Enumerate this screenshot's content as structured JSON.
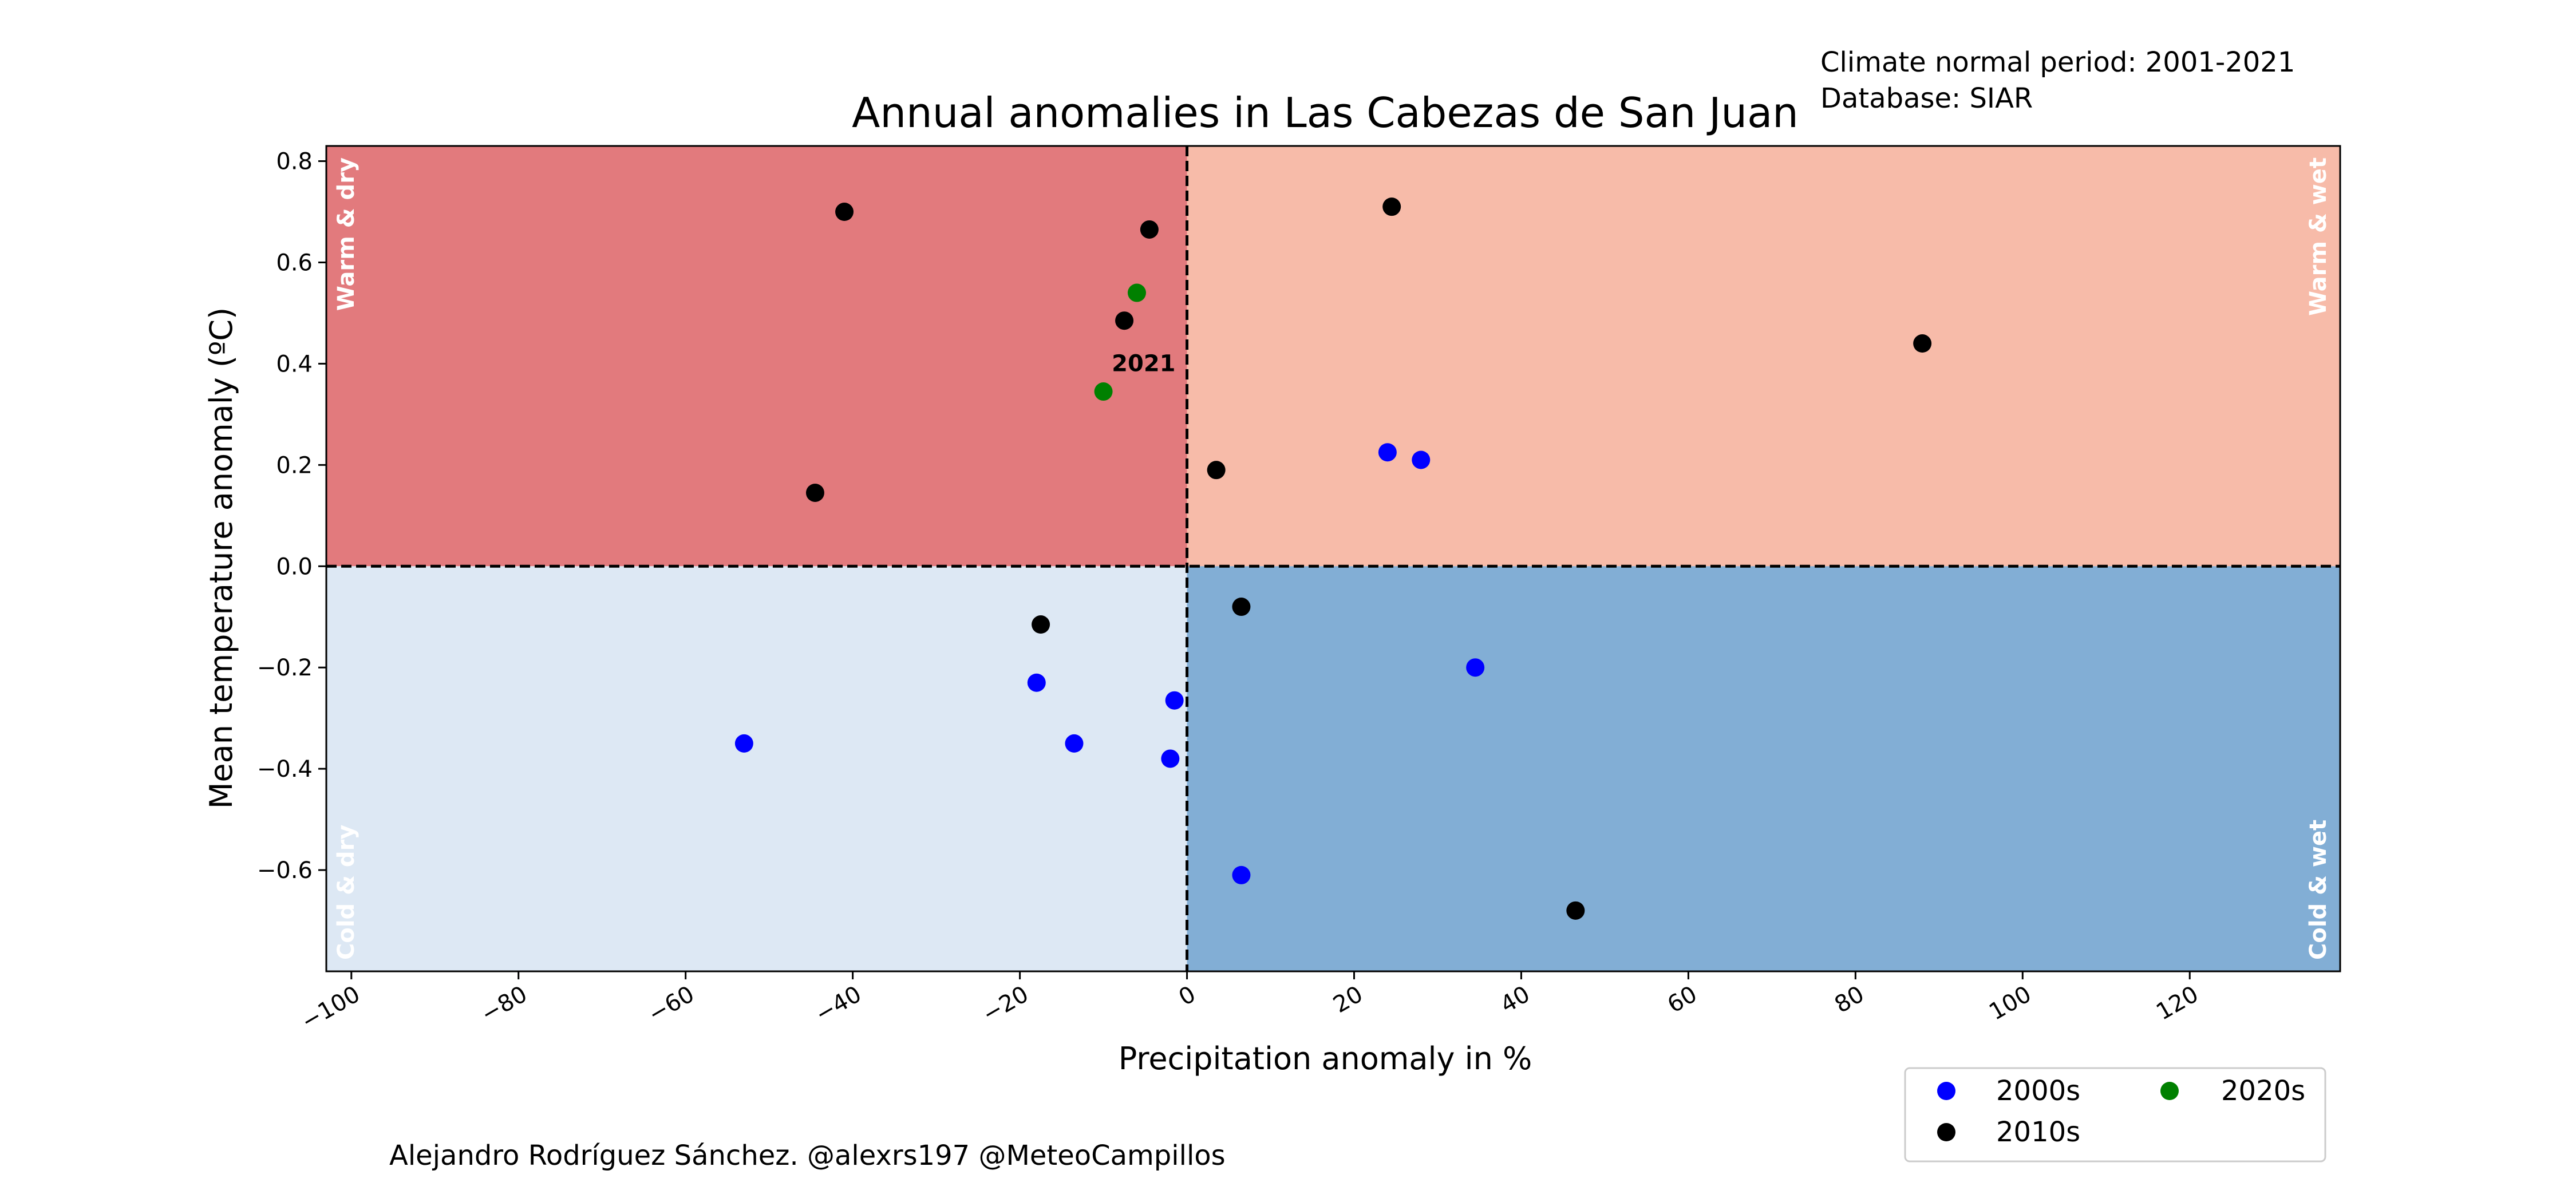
{
  "chart_data": {
    "type": "scatter",
    "title": "Annual anomalies in Las Cabezas de San Juan",
    "xlabel": "Precipitation anomaly in %",
    "ylabel": "Mean temperature anomaly (ºC)",
    "xlim": [
      -103,
      138
    ],
    "ylim": [
      -0.8,
      0.83
    ],
    "x_ticks": [
      -100,
      -80,
      -60,
      -40,
      -20,
      0,
      20,
      40,
      60,
      80,
      100,
      120
    ],
    "x_tick_labels": [
      "−100",
      "−80",
      "−60",
      "−40",
      "−20",
      "0",
      "20",
      "40",
      "60",
      "80",
      "100",
      "120"
    ],
    "y_ticks": [
      -0.6,
      -0.4,
      -0.2,
      0.0,
      0.2,
      0.4,
      0.6,
      0.8
    ],
    "y_tick_labels": [
      "−0.6",
      "−0.4",
      "−0.2",
      "0.0",
      "0.2",
      "0.4",
      "0.6",
      "0.8"
    ],
    "grid": false,
    "legend_position": "bottom-right, outside the plot",
    "quadrants": [
      {
        "label": "Warm & dry",
        "color": "#e27a7d",
        "position": "top-left"
      },
      {
        "label": "Warm & wet",
        "color": "#f7bba9",
        "position": "top-right"
      },
      {
        "label": "Cold & dry",
        "color": "#dde8f4",
        "position": "bottom-left"
      },
      {
        "label": "Cold & wet",
        "color": "#82aed5",
        "position": "bottom-right"
      }
    ],
    "series": [
      {
        "name": "2000s",
        "color": "#0000ff",
        "points": [
          {
            "x": -53,
            "y": -0.35
          },
          {
            "x": -18,
            "y": -0.23
          },
          {
            "x": -13.5,
            "y": -0.35
          },
          {
            "x": -1.5,
            "y": -0.265
          },
          {
            "x": -2,
            "y": -0.38
          },
          {
            "x": 6.5,
            "y": -0.61
          },
          {
            "x": 24,
            "y": 0.225
          },
          {
            "x": 28,
            "y": 0.21
          },
          {
            "x": 34.5,
            "y": -0.2
          }
        ]
      },
      {
        "name": "2010s",
        "color": "#000000",
        "points": [
          {
            "x": -41,
            "y": 0.7
          },
          {
            "x": -4.5,
            "y": 0.665
          },
          {
            "x": -7.5,
            "y": 0.485
          },
          {
            "x": -44.5,
            "y": 0.145
          },
          {
            "x": 3.5,
            "y": 0.19
          },
          {
            "x": 24.5,
            "y": 0.71
          },
          {
            "x": 88,
            "y": 0.44
          },
          {
            "x": -17.5,
            "y": -0.115
          },
          {
            "x": 6.5,
            "y": -0.08
          },
          {
            "x": 46.5,
            "y": -0.68
          }
        ]
      },
      {
        "name": "2020s",
        "color": "#008000",
        "points": [
          {
            "x": -6,
            "y": 0.54
          },
          {
            "x": -10,
            "y": 0.345
          }
        ]
      }
    ],
    "annotations": [
      {
        "text": "2021",
        "x": -9,
        "y": 0.385
      }
    ]
  },
  "info": {
    "normal_period": "Climate normal period: 2001-2021",
    "database": "Database: SIAR"
  },
  "credit": "Alejandro Rodríguez Sánchez. @alexrs197 @MeteoCampillos"
}
